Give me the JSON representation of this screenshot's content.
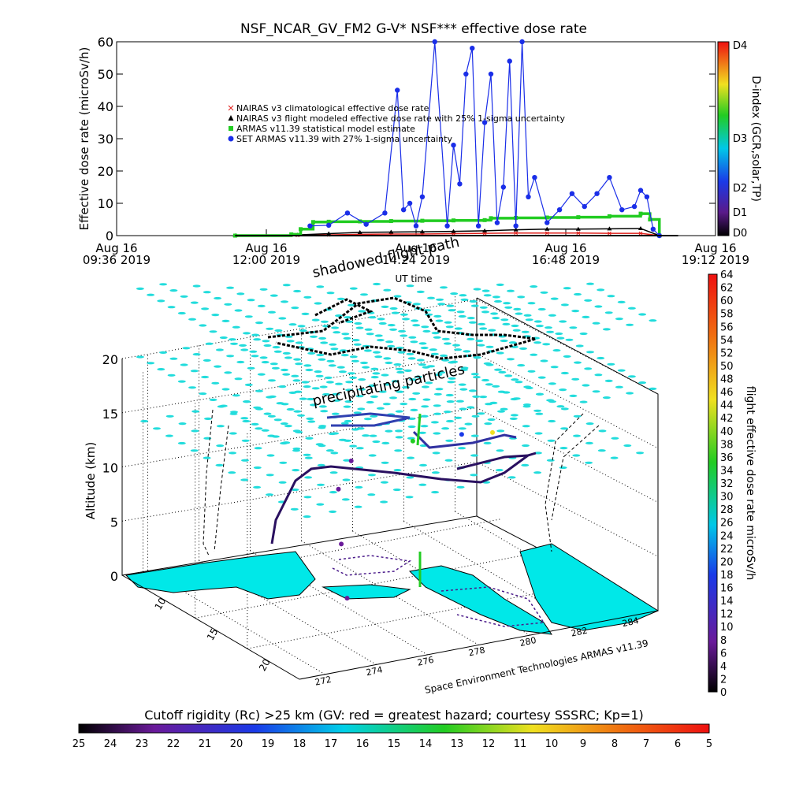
{
  "chart_data": [
    {
      "type": "line",
      "title": "NSF_NCAR_GV_FM2 G-V* NSF*** effective dose rate",
      "ylabel": "Effective dose rate (microSv/h)",
      "xlabel": "UT time",
      "ylim": [
        0,
        60
      ],
      "yticks": [
        "0",
        "10",
        "20",
        "30",
        "40",
        "50",
        "60"
      ],
      "xlim_hours": [
        9.6,
        19.2
      ],
      "xticks": [
        {
          "line1": "Aug 16",
          "line2": "09:36 2019"
        },
        {
          "line1": "Aug 16",
          "line2": "12:00 2019"
        },
        {
          "line1": "Aug 16",
          "line2": "14:24 2019"
        },
        {
          "line1": "Aug 16",
          "line2": "16:48 2019"
        },
        {
          "line1": "Aug 16",
          "line2": "19:12 2019"
        }
      ],
      "legend_position": "upper-left",
      "series": [
        {
          "name": "NAIRAS v3 climatological effective dose rate",
          "color": "#e0201c",
          "marker": "x",
          "x": [
            11.5,
            12.5,
            13.0,
            13.5,
            14.0,
            14.5,
            15.0,
            15.5,
            16.0,
            16.5,
            17.0,
            17.5,
            18.0,
            18.3
          ],
          "y": [
            0.0,
            0.1,
            0.2,
            0.4,
            0.5,
            0.5,
            0.6,
            0.7,
            0.8,
            0.8,
            0.8,
            0.7,
            0.7,
            0.0
          ]
        },
        {
          "name": "NAIRAS v3 flight modeled effective dose rate with 25% 1-sigma uncertainty",
          "color": "#000000",
          "marker": "triangle",
          "x": [
            11.5,
            12.5,
            13.0,
            13.5,
            14.0,
            14.5,
            15.0,
            15.5,
            16.0,
            16.5,
            17.0,
            17.5,
            18.0,
            18.3
          ],
          "y": [
            0.0,
            0.2,
            0.6,
            1.0,
            1.1,
            1.2,
            1.3,
            1.5,
            1.8,
            2.0,
            2.0,
            2.1,
            2.2,
            0.0
          ]
        },
        {
          "name": "ARMAS v11.39 statistical model estimate",
          "color": "#22cc22",
          "marker": "square",
          "x": [
            11.5,
            12.4,
            12.55,
            12.75,
            13.0,
            13.5,
            14.0,
            14.5,
            15.0,
            15.5,
            15.6,
            16.0,
            16.5,
            17.0,
            17.5,
            18.0,
            18.15,
            18.3
          ],
          "y": [
            0.0,
            0.4,
            2.0,
            4.2,
            4.3,
            4.4,
            4.5,
            4.6,
            4.7,
            4.8,
            5.4,
            5.5,
            5.6,
            5.7,
            6.0,
            6.8,
            5.0,
            0.0
          ]
        },
        {
          "name": "SET ARMAS v11.39 with 27% 1-sigma uncertainty",
          "color": "#1a2ee8",
          "marker": "circle",
          "x": [
            12.7,
            13.0,
            13.3,
            13.6,
            13.9,
            14.1,
            14.2,
            14.3,
            14.4,
            14.5,
            14.7,
            14.9,
            15.0,
            15.1,
            15.2,
            15.3,
            15.4,
            15.5,
            15.6,
            15.7,
            15.8,
            15.9,
            16.0,
            16.1,
            16.2,
            16.3,
            16.5,
            16.7,
            16.9,
            17.1,
            17.3,
            17.5,
            17.7,
            17.9,
            18.0,
            18.1,
            18.2,
            18.3
          ],
          "y": [
            3.0,
            3.2,
            7.0,
            3.5,
            7.0,
            45.0,
            8.0,
            10.0,
            3.0,
            12.0,
            60.0,
            3.0,
            28.0,
            16.0,
            50.0,
            58.0,
            3.0,
            35.0,
            50.0,
            4.0,
            15.0,
            54.0,
            3.0,
            60.0,
            12.0,
            18.0,
            4.0,
            8.0,
            13.0,
            9.0,
            13.0,
            18.0,
            8.0,
            9.0,
            14.0,
            12.0,
            2.0,
            0.0
          ]
        }
      ],
      "side_colorbar": {
        "label": "D-index (GCR,solar,TP)",
        "ticks": [
          "D4",
          "D3",
          "D2",
          "D1",
          "D0"
        ]
      }
    },
    {
      "type": "scatter",
      "ylabel": "Altitude (km)",
      "zlim": [
        0,
        20
      ],
      "zticks": [
        "0",
        "5",
        "10",
        "15",
        "20"
      ],
      "lat_ticks": [
        "10",
        "15",
        "20"
      ],
      "lon_ticks": [
        "272",
        "274",
        "276",
        "278",
        "280",
        "282",
        "284"
      ],
      "annotations": [
        "shadowed flight path",
        "precipitating particles"
      ],
      "credit": "Space Environment Technologies ARMAS v11.39",
      "flight_path_points": [
        {
          "lon": 276.2,
          "lat": 13.2,
          "alt": 0.5,
          "dose": 1
        },
        {
          "lon": 276.3,
          "lat": 14.0,
          "alt": 5.0,
          "dose": 2
        },
        {
          "lon": 276.8,
          "lat": 15.5,
          "alt": 9.0,
          "dose": 4
        },
        {
          "lon": 277.5,
          "lat": 16.0,
          "alt": 11.0,
          "dose": 6
        },
        {
          "lon": 279.5,
          "lat": 15.0,
          "alt": 12.5,
          "dose": 30
        },
        {
          "lon": 281.0,
          "lat": 14.0,
          "alt": 13.0,
          "dose": 18
        },
        {
          "lon": 282.0,
          "lat": 13.5,
          "alt": 13.0,
          "dose": 38
        }
      ],
      "dose_colorbar": {
        "label": "flight effective dose rate microSv/h",
        "min": 0,
        "max": 64,
        "ticks": [
          "0",
          "2",
          "4",
          "6",
          "8",
          "10",
          "12",
          "14",
          "16",
          "18",
          "20",
          "22",
          "24",
          "26",
          "28",
          "30",
          "32",
          "34",
          "36",
          "38",
          "40",
          "42",
          "44",
          "46",
          "48",
          "50",
          "52",
          "54",
          "56",
          "58",
          "60",
          "62",
          "64"
        ]
      },
      "rigidity_colorbar": {
        "label": "Cutoff rigidity (Rc) >25 km (GV: red = greatest hazard; courtesy SSSRC; Kp=1)",
        "ticks": [
          "25",
          "24",
          "23",
          "22",
          "21",
          "20",
          "19",
          "18",
          "17",
          "16",
          "15",
          "14",
          "13",
          "12",
          "11",
          "10",
          "9",
          "8",
          "7",
          "6",
          "5"
        ]
      },
      "colors": {
        "land": "#00e8e8",
        "rigidity_marker": "#22dcdc",
        "path_shadow": "#000000"
      }
    }
  ]
}
